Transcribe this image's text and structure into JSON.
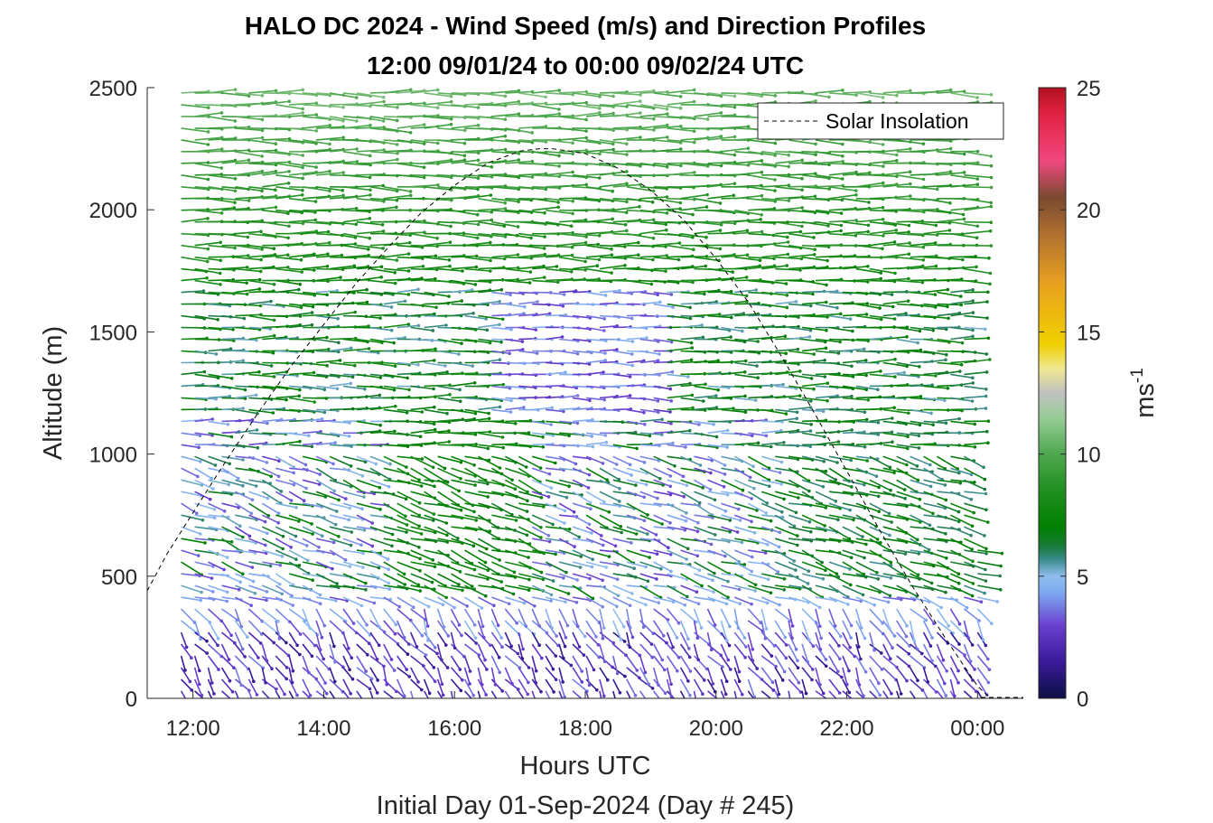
{
  "chart_data": {
    "type": "wind-barb-profile",
    "title": "HALO DC 2024 - Wind Speed (m/s) and Direction Profiles",
    "subtitle": "12:00 09/01/24 to 00:00 09/02/24  UTC",
    "xlabel": "Hours UTC",
    "x_sublabel": "Initial Day 01-Sep-2024 (Day # 245)",
    "ylabel": "Altitude (m)",
    "colorbar_label": "ms",
    "colorbar_label_exp": "-1",
    "xlim": [
      11.3,
      24.7
    ],
    "ylim": [
      0,
      2500
    ],
    "x_ticks": [
      12,
      14,
      16,
      18,
      20,
      22,
      24
    ],
    "x_tick_labels": [
      "12:00",
      "14:00",
      "16:00",
      "18:00",
      "20:00",
      "22:00",
      "00:00"
    ],
    "y_ticks": [
      0,
      500,
      1000,
      1500,
      2000,
      2500
    ],
    "y_tick_labels": [
      "0",
      "500",
      "1000",
      "1500",
      "2000",
      "2500"
    ],
    "colorbar_range": [
      0,
      25
    ],
    "colorbar_ticks": [
      0,
      5,
      10,
      15,
      20,
      25
    ],
    "colorbar_tick_labels": [
      "0",
      "5",
      "10",
      "15",
      "20",
      "25"
    ],
    "colormap": [
      {
        "v": 0,
        "c": "#0d1045"
      },
      {
        "v": 1.5,
        "c": "#3a1a9a"
      },
      {
        "v": 3,
        "c": "#6a40d0"
      },
      {
        "v": 4.3,
        "c": "#7ea8f0"
      },
      {
        "v": 5,
        "c": "#8fbdee"
      },
      {
        "v": 5.7,
        "c": "#3a8a8a"
      },
      {
        "v": 6.2,
        "c": "#1a7a3a"
      },
      {
        "v": 7,
        "c": "#007f00"
      },
      {
        "v": 8.5,
        "c": "#1f8f1f"
      },
      {
        "v": 10,
        "c": "#4fa84f"
      },
      {
        "v": 11.5,
        "c": "#98cc98"
      },
      {
        "v": 12.5,
        "c": "#c0c0c0"
      },
      {
        "v": 13.5,
        "c": "#f0e890"
      },
      {
        "v": 14.5,
        "c": "#f0d000"
      },
      {
        "v": 17,
        "c": "#e8a020"
      },
      {
        "v": 19,
        "c": "#b07030"
      },
      {
        "v": 20.5,
        "c": "#7a4a30"
      },
      {
        "v": 22,
        "c": "#f04880"
      },
      {
        "v": 24,
        "c": "#e02040"
      },
      {
        "v": 25,
        "c": "#b01020"
      }
    ],
    "legend": {
      "entries": [
        "Solar Insolation"
      ],
      "placement": "top-right",
      "line_style": "dashed"
    },
    "series": [
      {
        "name": "Solar Insolation",
        "x": [
          11.3,
          11.6,
          12.0,
          12.5,
          13.0,
          13.5,
          14.0,
          14.5,
          15.0,
          15.5,
          16.0,
          16.5,
          17.0,
          17.3,
          17.5,
          18.0,
          18.5,
          19.0,
          19.5,
          20.0,
          20.5,
          21.0,
          21.5,
          22.0,
          22.5,
          23.0,
          23.5,
          24.0,
          24.2
        ],
        "y": [
          440,
          590,
          760,
          970,
          1170,
          1360,
          1530,
          1700,
          1850,
          1990,
          2100,
          2190,
          2240,
          2250,
          2250,
          2230,
          2170,
          2080,
          1960,
          1800,
          1620,
          1400,
          1170,
          930,
          690,
          460,
          250,
          50,
          0
        ]
      }
    ],
    "barb_grid": {
      "x_start": 11.82,
      "x_end": 24.0,
      "columns": 60,
      "altitude_start": 30,
      "altitude_step": 48,
      "altitude_top": 2490
    }
  }
}
